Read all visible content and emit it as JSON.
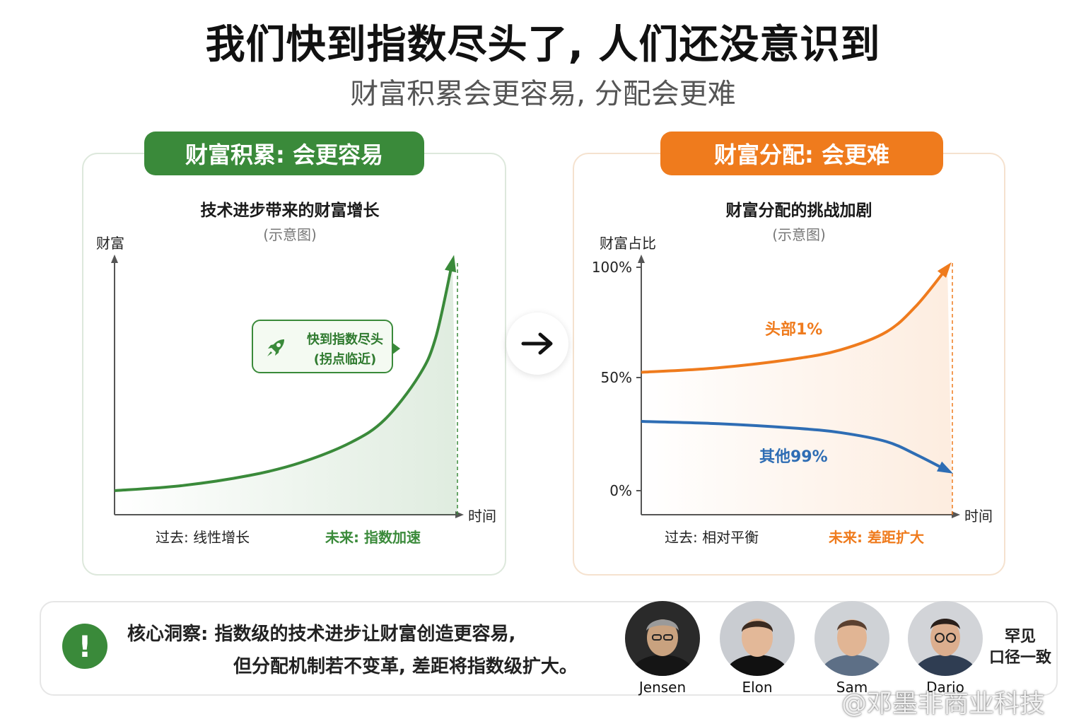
{
  "header": {
    "title": "我们快到指数尽头了, 人们还没意识到",
    "subtitle": "财富积累会更容易, 分配会更难"
  },
  "left_panel": {
    "badge": "财富积累: 会更容易",
    "chart_title": "技术进步带来的财富增长",
    "chart_note": "(示意图)",
    "y_axis_label": "财富",
    "x_axis_label": "时间",
    "past_label": "过去: 线性增长",
    "future_label": "未来: 指数加速",
    "callout_line1": "快到指数尽头",
    "callout_line2": "(拐点临近)",
    "callout_icon": "rocket-icon",
    "accent": "#3a8a3a"
  },
  "right_panel": {
    "badge": "财富分配: 会更难",
    "chart_title": "财富分配的挑战加剧",
    "chart_note": "(示意图)",
    "y_axis_label": "财富占比",
    "x_axis_label": "时间",
    "y_ticks": [
      "100%",
      "50%",
      "0%"
    ],
    "past_label": "过去: 相对平衡",
    "future_label": "未来: 差距扩大",
    "accent": "#ef7b1d"
  },
  "transition_icon": "arrow-right-icon",
  "insight": {
    "icon": "exclamation-icon",
    "line1": "核心洞察: 指数级的技术进步让财富创造更容易,",
    "line2": "但分配机制若不变革, 差距将指数级扩大。"
  },
  "people": [
    {
      "name": "Jensen"
    },
    {
      "name": "Elon"
    },
    {
      "name": "Sam"
    },
    {
      "name": "Dario"
    }
  ],
  "consensus_line1": "罕见",
  "consensus_line2": "口径一致",
  "watermark": "@邓墨非商业科技",
  "chart_data": [
    {
      "type": "line",
      "title": "技术进步带来的财富增长",
      "xlabel": "时间",
      "ylabel": "财富",
      "series": [
        {
          "x": [
            0,
            0.2,
            0.4,
            0.55,
            0.7,
            0.8,
            0.9,
            0.95,
            1.0
          ],
          "values": [
            0.1,
            0.12,
            0.16,
            0.21,
            0.29,
            0.38,
            0.55,
            0.7,
            1.0
          ]
        }
      ]
    },
    {
      "type": "line",
      "title": "财富分配的挑战加剧",
      "xlabel": "时间",
      "ylabel": "财富占比",
      "ylim": [
        0,
        100
      ],
      "y_ticks": [
        "0%",
        "50%",
        "100%"
      ],
      "series": [
        {
          "name": "头部1%",
          "color": "#ef7b1d",
          "x": [
            0,
            0.25,
            0.5,
            0.65,
            0.8,
            0.9,
            1.0
          ],
          "values": [
            53,
            55,
            59,
            63,
            71,
            83,
            100
          ]
        },
        {
          "name": "其他99%",
          "color": "#2e6db4",
          "x": [
            0,
            0.25,
            0.5,
            0.65,
            0.8,
            0.9,
            1.0
          ],
          "values": [
            31,
            30,
            28,
            26,
            22,
            16,
            9
          ]
        }
      ]
    }
  ]
}
